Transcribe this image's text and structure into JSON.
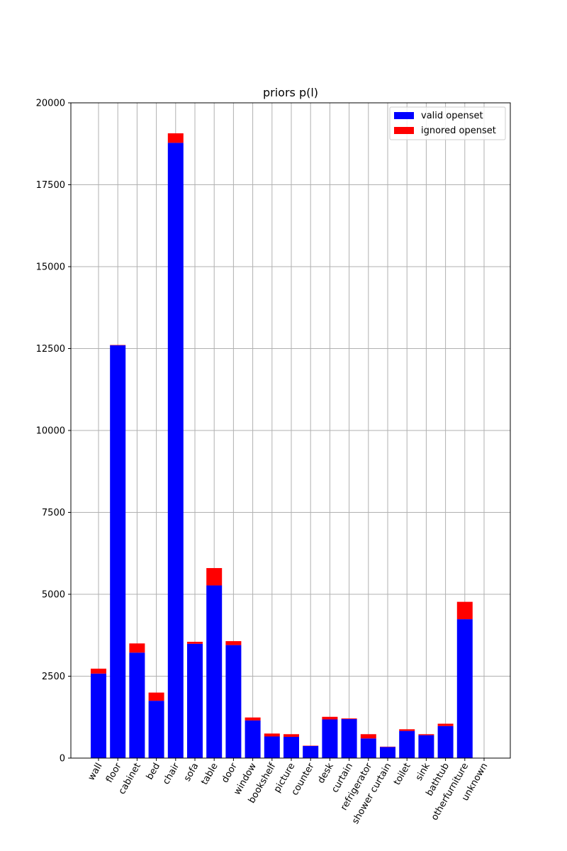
{
  "chart_data": {
    "type": "bar",
    "stacked": true,
    "title": "priors p(l)",
    "xlabel": "",
    "ylabel": "",
    "ylim": [
      0,
      20000
    ],
    "yticks": [
      0,
      2500,
      5000,
      7500,
      10000,
      12500,
      15000,
      17500,
      20000
    ],
    "grid": true,
    "legend_position": "top-right",
    "categories": [
      "wall",
      "floor",
      "cabinet",
      "bed",
      "chair",
      "sofa",
      "table",
      "door",
      "window",
      "bookshelf",
      "picture",
      "counter",
      "desk",
      "curtain",
      "refrigerator",
      "shower curtain",
      "toilet",
      "sink",
      "bathtub",
      "otherfurniture",
      "unknown"
    ],
    "series": [
      {
        "name": "valid openset",
        "color": "#0000ff",
        "values": [
          2580,
          12600,
          3220,
          1750,
          18780,
          3490,
          5270,
          3450,
          1150,
          660,
          650,
          370,
          1180,
          1190,
          600,
          340,
          830,
          700,
          980,
          4240,
          0
        ]
      },
      {
        "name": "ignored openset",
        "color": "#ff0000",
        "values": [
          150,
          10,
          280,
          250,
          290,
          60,
          530,
          120,
          90,
          90,
          80,
          10,
          80,
          20,
          130,
          10,
          50,
          30,
          70,
          530,
          0
        ]
      }
    ]
  }
}
